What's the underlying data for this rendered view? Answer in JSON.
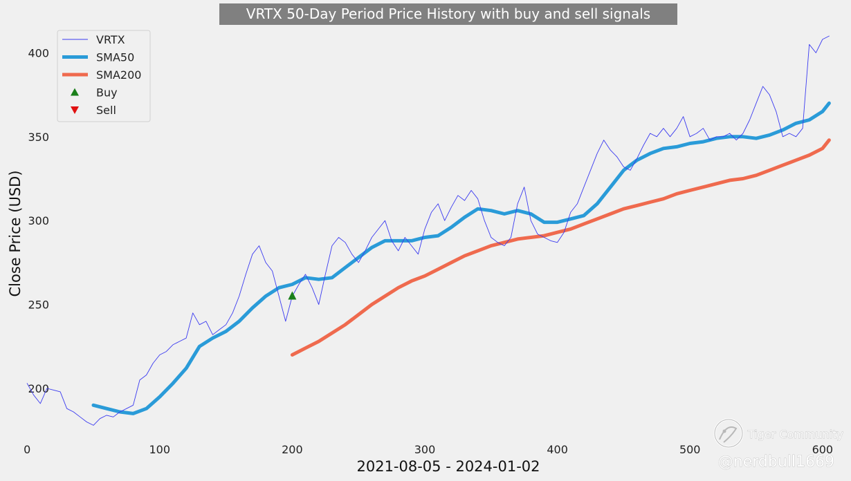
{
  "chart_data": {
    "type": "line",
    "title": "VRTX 50-Day Period Price History with buy and sell signals",
    "xlabel": "2021-08-05 - 2024-01-02",
    "ylabel": "Close Price (USD)",
    "xlim": [
      -10,
      610
    ],
    "ylim": [
      172,
      415
    ],
    "xticks": [
      0,
      100,
      200,
      300,
      400,
      500,
      600
    ],
    "yticks": [
      200,
      250,
      300,
      350,
      400
    ],
    "grid": false,
    "legend_position": "top-left",
    "series": [
      {
        "name": "VRTX",
        "color": "#3a3af0",
        "x": [
          0,
          5,
          10,
          15,
          20,
          25,
          30,
          35,
          40,
          45,
          50,
          55,
          60,
          65,
          70,
          75,
          80,
          85,
          90,
          95,
          100,
          105,
          110,
          115,
          120,
          125,
          130,
          135,
          140,
          145,
          150,
          155,
          160,
          165,
          170,
          175,
          180,
          185,
          190,
          195,
          200,
          205,
          210,
          215,
          220,
          225,
          230,
          235,
          240,
          245,
          250,
          255,
          260,
          265,
          270,
          275,
          280,
          285,
          290,
          295,
          300,
          305,
          310,
          315,
          320,
          325,
          330,
          335,
          340,
          345,
          350,
          355,
          360,
          365,
          370,
          375,
          380,
          385,
          390,
          395,
          400,
          405,
          410,
          415,
          420,
          425,
          430,
          435,
          440,
          445,
          450,
          455,
          460,
          465,
          470,
          475,
          480,
          485,
          490,
          495,
          500,
          505,
          510,
          515,
          520,
          525,
          530,
          535,
          540,
          545,
          550,
          555,
          560,
          565,
          570,
          575,
          580,
          585,
          590,
          595,
          600,
          605
        ],
        "values": [
          203,
          196,
          191,
          200,
          199,
          198,
          188,
          186,
          183,
          180,
          178,
          182,
          184,
          183,
          186,
          188,
          190,
          205,
          208,
          215,
          220,
          222,
          226,
          228,
          230,
          245,
          238,
          240,
          232,
          235,
          238,
          245,
          255,
          268,
          280,
          285,
          275,
          270,
          255,
          240,
          255,
          262,
          268,
          260,
          250,
          268,
          285,
          290,
          287,
          280,
          275,
          282,
          290,
          295,
          300,
          288,
          282,
          290,
          285,
          280,
          295,
          305,
          310,
          300,
          308,
          315,
          312,
          318,
          313,
          300,
          290,
          287,
          285,
          290,
          310,
          320,
          300,
          292,
          290,
          288,
          287,
          293,
          305,
          310,
          320,
          330,
          340,
          348,
          342,
          338,
          332,
          330,
          337,
          345,
          352,
          350,
          355,
          350,
          355,
          362,
          350,
          352,
          355,
          348,
          350,
          350,
          352,
          348,
          352,
          360,
          370,
          380,
          375,
          365,
          350,
          352,
          350,
          355,
          405,
          400,
          408,
          410
        ]
      },
      {
        "name": "SMA50",
        "color": "#2a9bd8",
        "x": [
          50,
          60,
          70,
          80,
          90,
          100,
          110,
          120,
          130,
          140,
          150,
          160,
          170,
          180,
          190,
          200,
          210,
          220,
          230,
          240,
          250,
          260,
          270,
          280,
          290,
          300,
          310,
          320,
          330,
          340,
          350,
          360,
          370,
          380,
          390,
          400,
          410,
          420,
          430,
          440,
          450,
          460,
          470,
          480,
          490,
          500,
          510,
          520,
          530,
          540,
          550,
          560,
          570,
          580,
          590,
          600,
          605
        ],
        "values": [
          190,
          188,
          186,
          185,
          188,
          195,
          203,
          212,
          225,
          230,
          234,
          240,
          248,
          255,
          260,
          262,
          266,
          265,
          266,
          272,
          278,
          284,
          288,
          288,
          288,
          290,
          291,
          296,
          302,
          307,
          306,
          304,
          306,
          304,
          299,
          299,
          301,
          303,
          310,
          320,
          330,
          336,
          340,
          343,
          344,
          346,
          347,
          349,
          350,
          350,
          349,
          351,
          354,
          358,
          360,
          365,
          370
        ]
      },
      {
        "name": "SMA200",
        "color": "#ef6a4e",
        "x": [
          200,
          210,
          220,
          230,
          240,
          250,
          260,
          270,
          280,
          290,
          300,
          310,
          320,
          330,
          340,
          350,
          360,
          370,
          380,
          390,
          400,
          410,
          420,
          430,
          440,
          450,
          460,
          470,
          480,
          490,
          500,
          510,
          520,
          530,
          540,
          550,
          560,
          570,
          580,
          590,
          600,
          605
        ],
        "values": [
          220,
          224,
          228,
          233,
          238,
          244,
          250,
          255,
          260,
          264,
          267,
          271,
          275,
          279,
          282,
          285,
          287,
          289,
          290,
          291,
          293,
          295,
          298,
          301,
          304,
          307,
          309,
          311,
          313,
          316,
          318,
          320,
          322,
          324,
          325,
          327,
          330,
          333,
          336,
          339,
          343,
          348
        ]
      }
    ],
    "signals": [
      {
        "name": "Buy",
        "marker": "triangle-up",
        "color": "#1a7f1a",
        "x": [
          200
        ],
        "values": [
          255
        ]
      },
      {
        "name": "Sell",
        "marker": "triangle-down",
        "color": "#e01010",
        "x": [],
        "values": []
      }
    ]
  },
  "watermark": {
    "brand": "Tiger Community",
    "handle": "@nerdbull1669"
  }
}
